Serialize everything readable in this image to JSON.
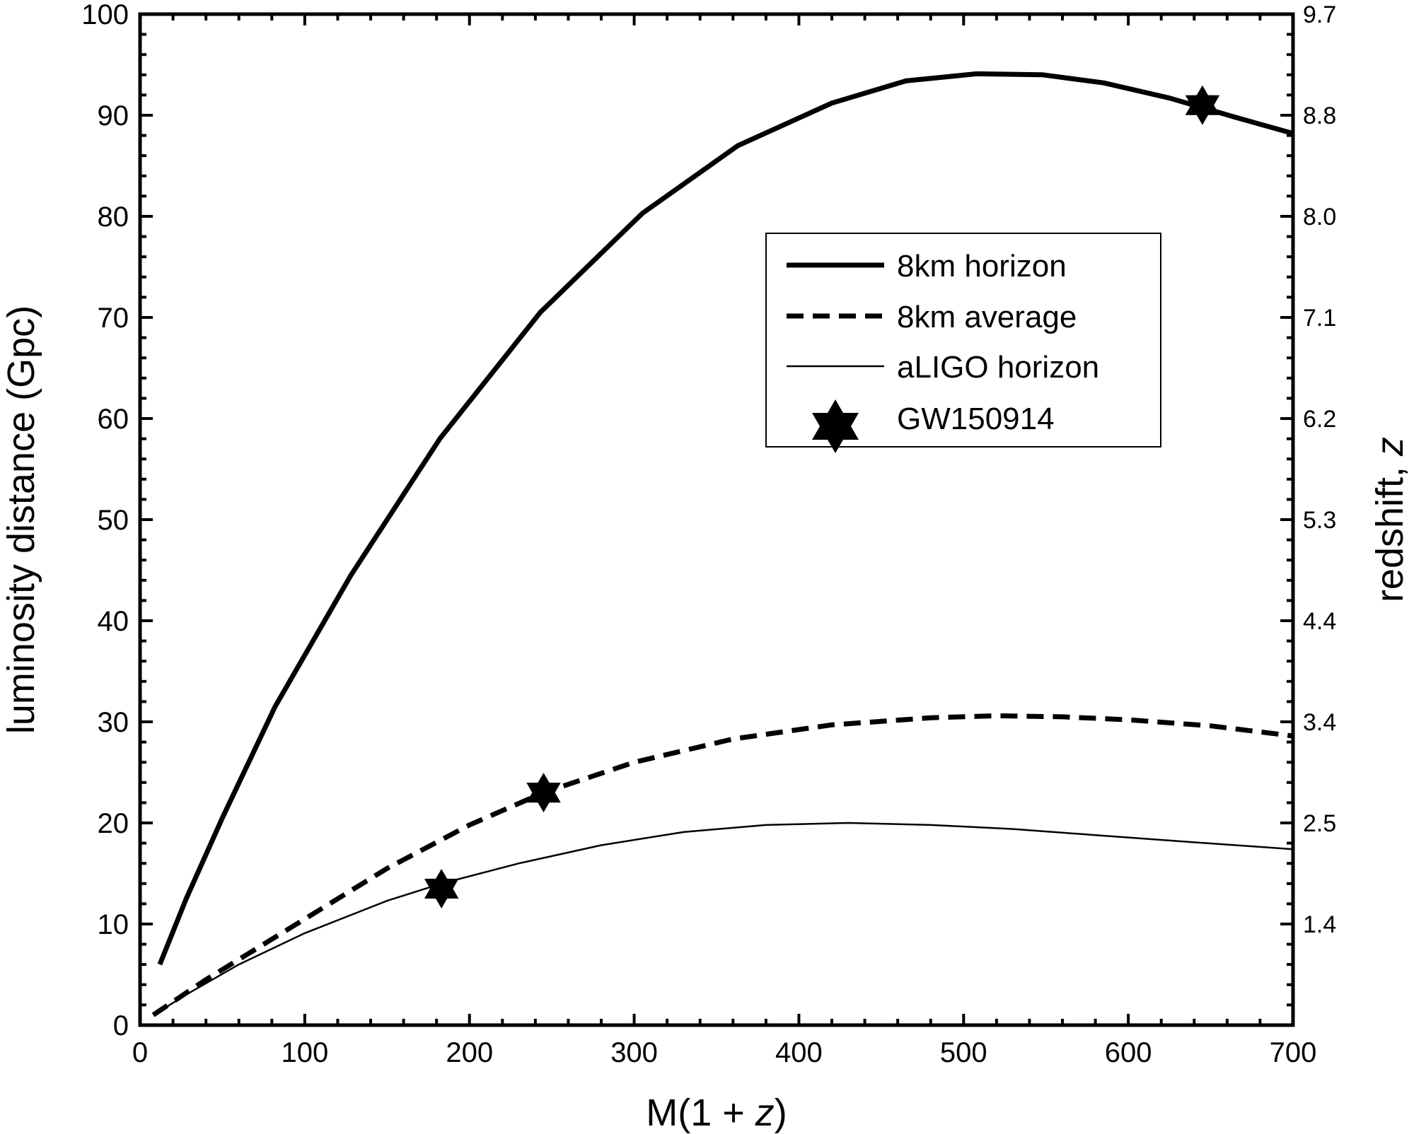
{
  "chart_data": {
    "type": "line",
    "title": "",
    "xlabel": "M(1 + ",
    "xlabel_var": "z",
    "xlabel_close": ")",
    "ylabel": "luminosity distance (Gpc)",
    "y2label": "redshift, ",
    "y2label_var": "z",
    "xlim": [
      0,
      700
    ],
    "ylim": [
      0,
      100
    ],
    "xticks": [
      "0",
      "100",
      "200",
      "300",
      "400",
      "500",
      "600",
      "700"
    ],
    "yticks": [
      "0",
      "10",
      "20",
      "30",
      "40",
      "50",
      "60",
      "70",
      "80",
      "90",
      "100"
    ],
    "y2ticks": [
      {
        "y": 10,
        "label": "1.4"
      },
      {
        "y": 20,
        "label": "2.5"
      },
      {
        "y": 30,
        "label": "3.4"
      },
      {
        "y": 40,
        "label": "4.4"
      },
      {
        "y": 50,
        "label": "5.3"
      },
      {
        "y": 60,
        "label": "6.2"
      },
      {
        "y": 70,
        "label": "7.1"
      },
      {
        "y": 80,
        "label": "8.0"
      },
      {
        "y": 90,
        "label": "8.8"
      },
      {
        "y": 100,
        "label": "9.7"
      }
    ],
    "grid": false,
    "legend_position": "upper-right",
    "series": [
      {
        "name": "8km horizon",
        "style": "thick-solid",
        "x": [
          12,
          28,
          50,
          82,
          128,
          182,
          243,
          305,
          363,
          420,
          465,
          508,
          548,
          585,
          625,
          665,
          700
        ],
        "y": [
          6,
          12.5,
          20.5,
          31.5,
          44.5,
          58,
          70.5,
          80.3,
          87,
          91.2,
          93.4,
          94.1,
          94,
          93.2,
          91.7,
          89.8,
          88.2
        ]
      },
      {
        "name": "8km average",
        "style": "thick-dashed",
        "x": [
          8,
          40,
          90,
          150,
          200,
          245,
          300,
          360,
          420,
          480,
          520,
          560,
          600,
          650,
          700
        ],
        "y": [
          1,
          4.5,
          9.5,
          15.5,
          19.8,
          23,
          26,
          28.3,
          29.7,
          30.4,
          30.6,
          30.5,
          30.2,
          29.6,
          28.6
        ]
      },
      {
        "name": "aLIGO horizon",
        "style": "thin-solid",
        "x": [
          8,
          30,
          60,
          100,
          150,
          183,
          230,
          280,
          330,
          380,
          430,
          480,
          530,
          580,
          630,
          700
        ],
        "y": [
          1,
          3.2,
          6,
          9.1,
          12.3,
          14,
          16,
          17.8,
          19.1,
          19.8,
          20,
          19.8,
          19.4,
          18.8,
          18.2,
          17.4
        ]
      }
    ],
    "markers": [
      {
        "name": "GW150914",
        "points": [
          {
            "x": 183,
            "y": 13.5
          },
          {
            "x": 245,
            "y": 23
          },
          {
            "x": 645,
            "y": 91
          }
        ]
      }
    ]
  }
}
